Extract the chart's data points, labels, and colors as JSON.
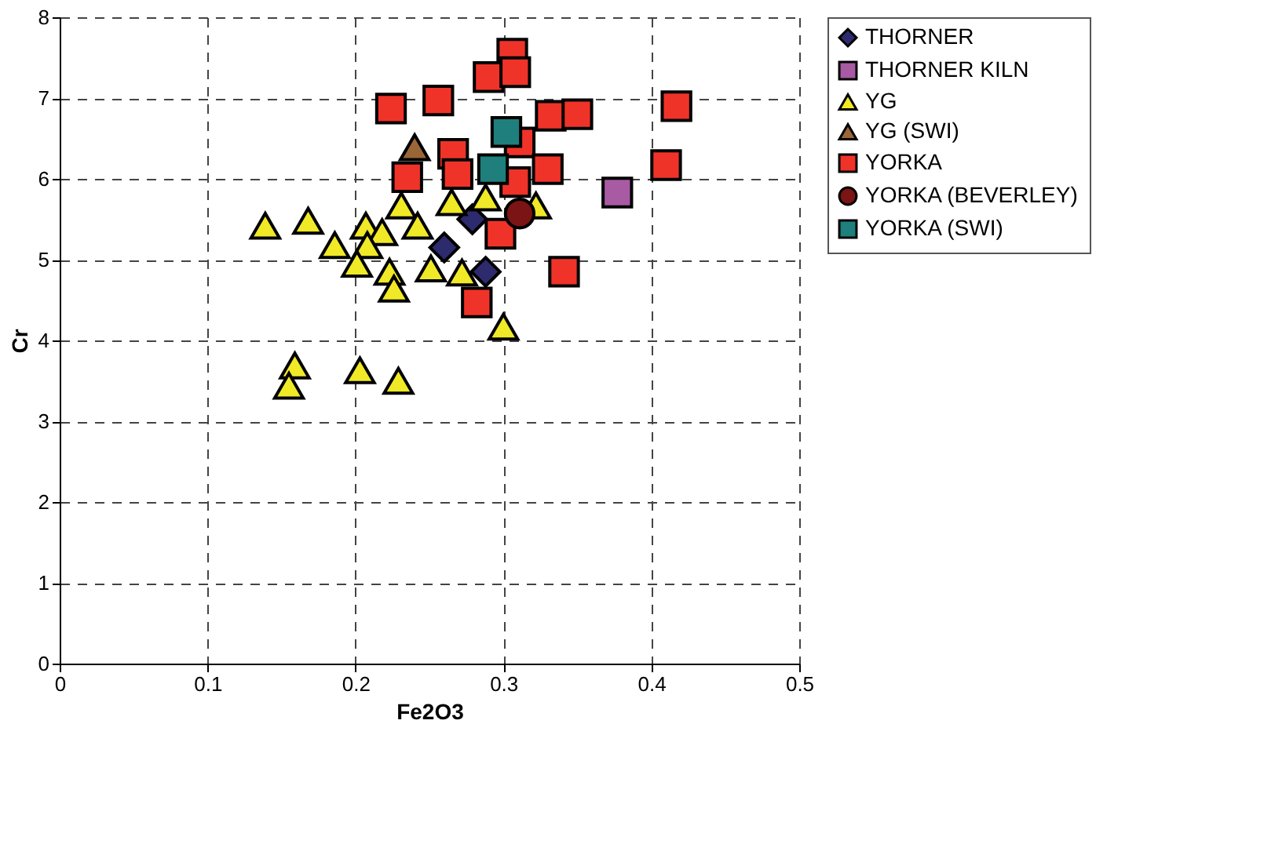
{
  "chart_data": {
    "type": "scatter",
    "xlabel": "Fe2O3",
    "ylabel": "Cr",
    "xlim": [
      0,
      0.5
    ],
    "ylim": [
      0,
      8
    ],
    "xticks": [
      0,
      0.1,
      0.2,
      0.3,
      0.4,
      0.5
    ],
    "yticks": [
      0,
      1,
      2,
      3,
      4,
      5,
      6,
      7,
      8
    ],
    "grid": true,
    "legend": "right",
    "series": [
      {
        "name": "THORNER",
        "color": "#2e2a6e",
        "marker": "diamond",
        "x": [
          0.26,
          0.288,
          0.279
        ],
        "values": [
          5.15,
          4.85,
          5.5
        ]
      },
      {
        "name": "THORNER KILN",
        "color": "#a85aa3",
        "marker": "square",
        "x": [
          0.377
        ],
        "values": [
          5.83
        ]
      },
      {
        "name": "YG",
        "color": "#f0e927",
        "marker": "triangle",
        "x": [
          0.139,
          0.168,
          0.186,
          0.207,
          0.218,
          0.208,
          0.223,
          0.226,
          0.231,
          0.242,
          0.251,
          0.272,
          0.265,
          0.288,
          0.322,
          0.3,
          0.159,
          0.155,
          0.203,
          0.229,
          0.201
        ],
        "values": [
          5.42,
          5.48,
          5.18,
          5.42,
          5.34,
          5.18,
          4.85,
          4.64,
          5.67,
          5.42,
          4.89,
          4.84,
          5.71,
          5.77,
          5.67,
          4.17,
          3.69,
          3.44,
          3.63,
          3.5,
          4.95
        ]
      },
      {
        "name": "YG (SWI)",
        "color": "#9a6638",
        "marker": "triangle",
        "x": [
          0.24
        ],
        "values": [
          6.39
        ]
      },
      {
        "name": "YORKA",
        "color": "#ef3329",
        "marker": "square",
        "x": [
          0.306,
          0.29,
          0.308,
          0.224,
          0.256,
          0.332,
          0.35,
          0.266,
          0.235,
          0.269,
          0.311,
          0.33,
          0.308,
          0.298,
          0.341,
          0.282,
          0.417,
          0.41
        ],
        "values": [
          7.55,
          7.26,
          7.32,
          6.87,
          6.97,
          6.78,
          6.8,
          6.31,
          6.02,
          6.06,
          6.45,
          6.12,
          5.96,
          5.32,
          4.85,
          4.47,
          6.9,
          6.17
        ]
      },
      {
        "name": "YORKA (BEVERLEY)",
        "color": "#7b1414",
        "marker": "circle",
        "x": [
          0.311
        ],
        "values": [
          5.57
        ]
      },
      {
        "name": "YORKA (SWI)",
        "color": "#1e7f7c",
        "marker": "square",
        "x": [
          0.302,
          0.293
        ],
        "values": [
          6.58,
          6.12
        ]
      }
    ]
  }
}
